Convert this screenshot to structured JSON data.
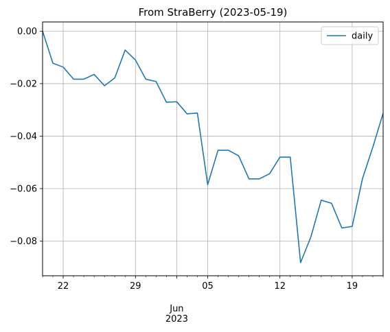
{
  "chart_data": {
    "type": "line",
    "title": "From StraBerry (2023-05-19)",
    "xlabel": "",
    "ylabel": "",
    "x_start": "2023-05-19",
    "x_end": "2023-06-21",
    "xlim": [
      "2023-05-19",
      "2023-06-21"
    ],
    "ylim": [
      -0.0932,
      0.0035
    ],
    "grid": true,
    "legend": {
      "position": "top-right",
      "entries": [
        "daily"
      ]
    },
    "x_ticks": [
      {
        "date": "2023-05-21",
        "label": "22",
        "sublabel": ""
      },
      {
        "date": "2023-05-28",
        "label": "29",
        "sublabel": ""
      },
      {
        "date": "2023-06-01",
        "label": "",
        "sublabel": "Jun\n2023"
      },
      {
        "date": "2023-06-04",
        "label": "05",
        "sublabel": ""
      },
      {
        "date": "2023-06-11",
        "label": "12",
        "sublabel": ""
      },
      {
        "date": "2023-06-18",
        "label": "19",
        "sublabel": ""
      }
    ],
    "y_ticks": [
      {
        "value": 0.0,
        "label": "0.00"
      },
      {
        "value": -0.02,
        "label": "−0.02"
      },
      {
        "value": -0.04,
        "label": "−0.04"
      },
      {
        "value": -0.06,
        "label": "−0.06"
      },
      {
        "value": -0.08,
        "label": "−0.08"
      }
    ],
    "series": [
      {
        "name": "daily",
        "color": "#1f77b4",
        "x": [
          "2023-05-19",
          "2023-05-20",
          "2023-05-21",
          "2023-05-22",
          "2023-05-23",
          "2023-05-24",
          "2023-05-25",
          "2023-05-26",
          "2023-05-27",
          "2023-05-28",
          "2023-05-29",
          "2023-05-30",
          "2023-05-31",
          "2023-06-01",
          "2023-06-02",
          "2023-06-03",
          "2023-06-04",
          "2023-06-05",
          "2023-06-06",
          "2023-06-07",
          "2023-06-08",
          "2023-06-09",
          "2023-06-10",
          "2023-06-11",
          "2023-06-12",
          "2023-06-13",
          "2023-06-14",
          "2023-06-15",
          "2023-06-16",
          "2023-06-17",
          "2023-06-18",
          "2023-06-19",
          "2023-06-20",
          "2023-06-21"
        ],
        "values": [
          0.0,
          -0.0122,
          -0.0137,
          -0.0183,
          -0.0183,
          -0.0165,
          -0.0208,
          -0.0178,
          -0.0072,
          -0.011,
          -0.0183,
          -0.0192,
          -0.0271,
          -0.0269,
          -0.0315,
          -0.0312,
          -0.0585,
          -0.0454,
          -0.0454,
          -0.0475,
          -0.0563,
          -0.0563,
          -0.0543,
          -0.048,
          -0.048,
          -0.0882,
          -0.0784,
          -0.0644,
          -0.0656,
          -0.075,
          -0.0744,
          -0.0562,
          -0.0442,
          -0.0313
        ]
      }
    ]
  }
}
